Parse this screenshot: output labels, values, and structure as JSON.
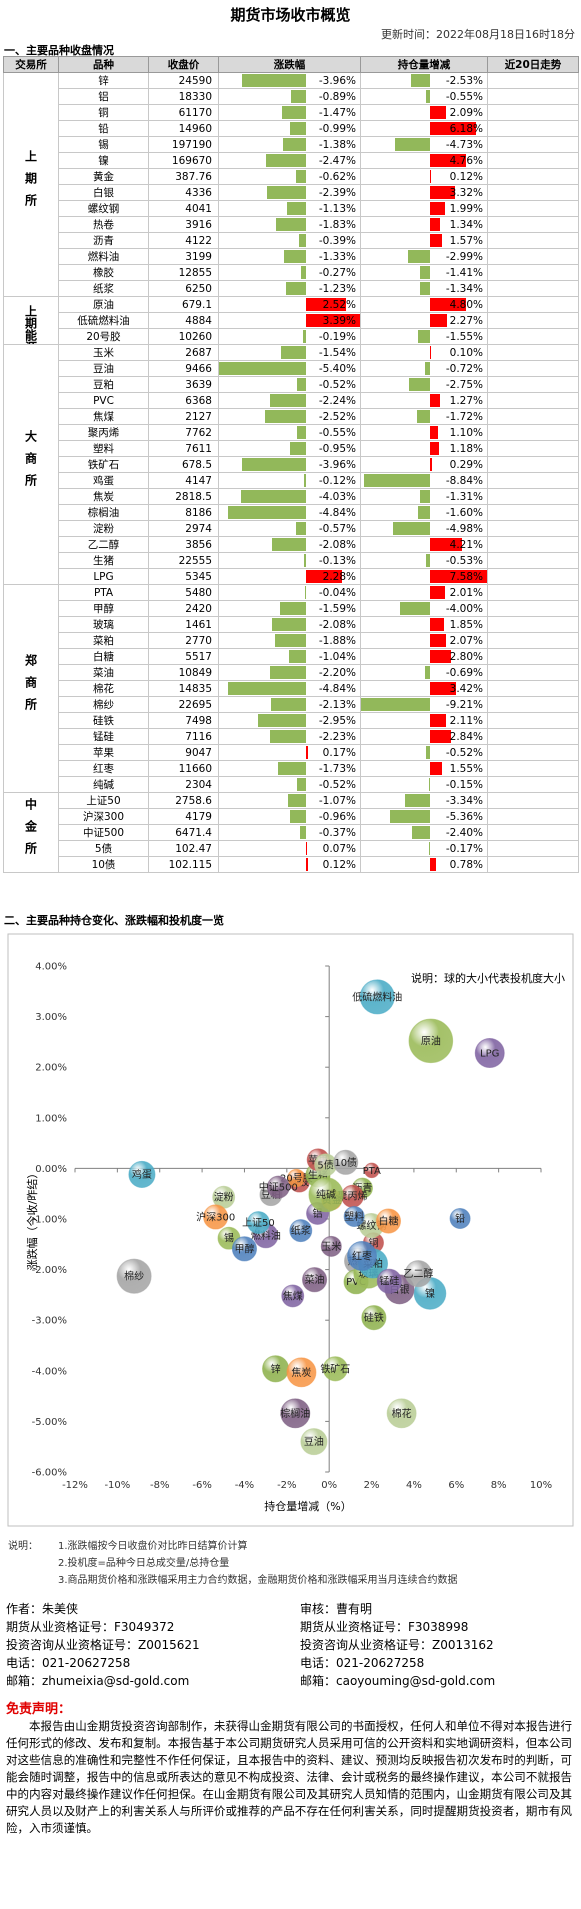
{
  "header": {
    "title": "期货市场收市概览",
    "updated": "更新时间：2022年08月18日16时18分"
  },
  "section1": "一、主要品种收盘情况",
  "table": {
    "columns": [
      "交易所",
      "品种",
      "收盘价",
      "涨跌幅",
      "持仓量增减",
      "近20日走势"
    ],
    "bar_colors": {
      "positive": "#ff0000",
      "negative": "#92b85a"
    },
    "groups": [
      {
        "exchange": "上期所",
        "rows": [
          {
            "name": "锌",
            "close": "24590",
            "change": -3.96,
            "change_label": "-3.96%",
            "oi": -2.53,
            "oi_label": "-2.53%"
          },
          {
            "name": "铝",
            "close": "18330",
            "change": -0.89,
            "change_label": "-0.89%",
            "oi": -0.55,
            "oi_label": "-0.55%"
          },
          {
            "name": "铜",
            "close": "61170",
            "change": -1.47,
            "change_label": "-1.47%",
            "oi": 2.09,
            "oi_label": "2.09%"
          },
          {
            "name": "铅",
            "close": "14960",
            "change": -0.99,
            "change_label": "-0.99%",
            "oi": 6.18,
            "oi_label": "6.18%"
          },
          {
            "name": "锡",
            "close": "197190",
            "change": -1.38,
            "change_label": "-1.38%",
            "oi": -4.73,
            "oi_label": "-4.73%"
          },
          {
            "name": "镍",
            "close": "169670",
            "change": -2.47,
            "change_label": "-2.47%",
            "oi": 4.76,
            "oi_label": "4.76%"
          },
          {
            "name": "黄金",
            "close": "387.76",
            "change": -0.62,
            "change_label": "-0.62%",
            "oi": 0.12,
            "oi_label": "0.12%"
          },
          {
            "name": "白银",
            "close": "4336",
            "change": -2.39,
            "change_label": "-2.39%",
            "oi": 3.32,
            "oi_label": "3.32%"
          },
          {
            "name": "螺纹钢",
            "close": "4041",
            "change": -1.13,
            "change_label": "-1.13%",
            "oi": 1.99,
            "oi_label": "1.99%"
          },
          {
            "name": "热卷",
            "close": "3916",
            "change": -1.83,
            "change_label": "-1.83%",
            "oi": 1.34,
            "oi_label": "1.34%"
          },
          {
            "name": "沥青",
            "close": "4122",
            "change": -0.39,
            "change_label": "-0.39%",
            "oi": 1.57,
            "oi_label": "1.57%"
          },
          {
            "name": "燃料油",
            "close": "3199",
            "change": -1.33,
            "change_label": "-1.33%",
            "oi": -2.99,
            "oi_label": "-2.99%"
          },
          {
            "name": "橡胶",
            "close": "12855",
            "change": -0.27,
            "change_label": "-0.27%",
            "oi": -1.41,
            "oi_label": "-1.41%"
          },
          {
            "name": "纸浆",
            "close": "6250",
            "change": -1.23,
            "change_label": "-1.23%",
            "oi": -1.34,
            "oi_label": "-1.34%"
          }
        ]
      },
      {
        "exchange": "上期能源",
        "rows": [
          {
            "name": "原油",
            "close": "679.1",
            "change": 2.52,
            "change_label": "2.52%",
            "oi": 4.8,
            "oi_label": "4.80%"
          },
          {
            "name": "低硫燃料油",
            "close": "4884",
            "change": 3.39,
            "change_label": "3.39%",
            "oi": 2.27,
            "oi_label": "2.27%"
          },
          {
            "name": "20号胶",
            "close": "10260",
            "change": -0.19,
            "change_label": "-0.19%",
            "oi": -1.55,
            "oi_label": "-1.55%"
          }
        ]
      },
      {
        "exchange": "大商所",
        "rows": [
          {
            "name": "玉米",
            "close": "2687",
            "change": -1.54,
            "change_label": "-1.54%",
            "oi": 0.1,
            "oi_label": "0.10%"
          },
          {
            "name": "豆油",
            "close": "9466",
            "change": -5.4,
            "change_label": "-5.40%",
            "oi": -0.72,
            "oi_label": "-0.72%"
          },
          {
            "name": "豆粕",
            "close": "3639",
            "change": -0.52,
            "change_label": "-0.52%",
            "oi": -2.75,
            "oi_label": "-2.75%"
          },
          {
            "name": "PVC",
            "close": "6368",
            "change": -2.24,
            "change_label": "-2.24%",
            "oi": 1.27,
            "oi_label": "1.27%"
          },
          {
            "name": "焦煤",
            "close": "2127",
            "change": -2.52,
            "change_label": "-2.52%",
            "oi": -1.72,
            "oi_label": "-1.72%"
          },
          {
            "name": "聚丙烯",
            "close": "7762",
            "change": -0.55,
            "change_label": "-0.55%",
            "oi": 1.1,
            "oi_label": "1.10%"
          },
          {
            "name": "塑料",
            "close": "7611",
            "change": -0.95,
            "change_label": "-0.95%",
            "oi": 1.18,
            "oi_label": "1.18%"
          },
          {
            "name": "铁矿石",
            "close": "678.5",
            "change": -3.96,
            "change_label": "-3.96%",
            "oi": 0.29,
            "oi_label": "0.29%"
          },
          {
            "name": "鸡蛋",
            "close": "4147",
            "change": -0.12,
            "change_label": "-0.12%",
            "oi": -8.84,
            "oi_label": "-8.84%"
          },
          {
            "name": "焦炭",
            "close": "2818.5",
            "change": -4.03,
            "change_label": "-4.03%",
            "oi": -1.31,
            "oi_label": "-1.31%"
          },
          {
            "name": "棕榈油",
            "close": "8186",
            "change": -4.84,
            "change_label": "-4.84%",
            "oi": -1.6,
            "oi_label": "-1.60%"
          },
          {
            "name": "淀粉",
            "close": "2974",
            "change": -0.57,
            "change_label": "-0.57%",
            "oi": -4.98,
            "oi_label": "-4.98%"
          },
          {
            "name": "乙二醇",
            "close": "3856",
            "change": -2.08,
            "change_label": "-2.08%",
            "oi": 4.21,
            "oi_label": "4.21%"
          },
          {
            "name": "生猪",
            "close": "22555",
            "change": -0.13,
            "change_label": "-0.13%",
            "oi": -0.53,
            "oi_label": "-0.53%"
          },
          {
            "name": "LPG",
            "close": "5345",
            "change": 2.28,
            "change_label": "2.28%",
            "oi": 7.58,
            "oi_label": "7.58%"
          }
        ]
      },
      {
        "exchange": "郑商所",
        "rows": [
          {
            "name": "PTA",
            "close": "5480",
            "change": -0.04,
            "change_label": "-0.04%",
            "oi": 2.01,
            "oi_label": "2.01%"
          },
          {
            "name": "甲醇",
            "close": "2420",
            "change": -1.59,
            "change_label": "-1.59%",
            "oi": -4.0,
            "oi_label": "-4.00%"
          },
          {
            "name": "玻璃",
            "close": "1461",
            "change": -2.08,
            "change_label": "-2.08%",
            "oi": 1.85,
            "oi_label": "1.85%"
          },
          {
            "name": "菜粕",
            "close": "2770",
            "change": -1.88,
            "change_label": "-1.88%",
            "oi": 2.07,
            "oi_label": "2.07%"
          },
          {
            "name": "白糖",
            "close": "5517",
            "change": -1.04,
            "change_label": "-1.04%",
            "oi": 2.8,
            "oi_label": "2.80%"
          },
          {
            "name": "菜油",
            "close": "10849",
            "change": -2.2,
            "change_label": "-2.20%",
            "oi": -0.69,
            "oi_label": "-0.69%"
          },
          {
            "name": "棉花",
            "close": "14835",
            "change": -4.84,
            "change_label": "-4.84%",
            "oi": 3.42,
            "oi_label": "3.42%"
          },
          {
            "name": "棉纱",
            "close": "22695",
            "change": -2.13,
            "change_label": "-2.13%",
            "oi": -9.21,
            "oi_label": "-9.21%"
          },
          {
            "name": "硅铁",
            "close": "7498",
            "change": -2.95,
            "change_label": "-2.95%",
            "oi": 2.11,
            "oi_label": "2.11%"
          },
          {
            "name": "锰硅",
            "close": "7116",
            "change": -2.23,
            "change_label": "-2.23%",
            "oi": 2.84,
            "oi_label": "2.84%"
          },
          {
            "name": "苹果",
            "close": "9047",
            "change": 0.17,
            "change_label": "0.17%",
            "oi": -0.52,
            "oi_label": "-0.52%"
          },
          {
            "name": "红枣",
            "close": "11660",
            "change": -1.73,
            "change_label": "-1.73%",
            "oi": 1.55,
            "oi_label": "1.55%"
          },
          {
            "name": "纯碱",
            "close": "2304",
            "change": -0.52,
            "change_label": "-0.52%",
            "oi": -0.15,
            "oi_label": "-0.15%"
          }
        ]
      },
      {
        "exchange": "中金所",
        "rows": [
          {
            "name": "上证50",
            "close": "2758.6",
            "change": -1.07,
            "change_label": "-1.07%",
            "oi": -3.34,
            "oi_label": "-3.34%"
          },
          {
            "name": "沪深300",
            "close": "4179",
            "change": -0.96,
            "change_label": "-0.96%",
            "oi": -5.36,
            "oi_label": "-5.36%"
          },
          {
            "name": "中证500",
            "close": "6471.4",
            "change": -0.37,
            "change_label": "-0.37%",
            "oi": -2.4,
            "oi_label": "-2.40%"
          },
          {
            "name": "5债",
            "close": "102.47",
            "change": 0.07,
            "change_label": "0.07%",
            "oi": -0.17,
            "oi_label": "-0.17%"
          },
          {
            "name": "10债",
            "close": "102.115",
            "change": 0.12,
            "change_label": "0.12%",
            "oi": 0.78,
            "oi_label": "0.78%"
          }
        ]
      }
    ]
  },
  "section2": "二、主要品种持仓变化、涨跌幅和投机度一览",
  "chart_data": {
    "type": "bubble",
    "note": "说明：球的大小代表投机度大小",
    "xlabel": "持仓量增减（%）",
    "ylabel": "涨跌幅（今收/昨结）",
    "xlim": [
      -12,
      10
    ],
    "ylim": [
      -6,
      4
    ],
    "xticks": [
      {
        "value": -12,
        "label": "-12%"
      },
      {
        "value": -10,
        "label": "-10%"
      },
      {
        "value": -8,
        "label": "-8%"
      },
      {
        "value": -6,
        "label": "-6%"
      },
      {
        "value": -4,
        "label": "-4%"
      },
      {
        "value": -2,
        "label": "-2%"
      },
      {
        "value": 0,
        "label": "0%"
      },
      {
        "value": 2,
        "label": "2%"
      },
      {
        "value": 4,
        "label": "4%"
      },
      {
        "value": 6,
        "label": "6%"
      },
      {
        "value": 8,
        "label": "8%"
      },
      {
        "value": 10,
        "label": "10%"
      }
    ],
    "yticks": [
      {
        "value": 4,
        "label": "4.00%"
      },
      {
        "value": 3,
        "label": "3.00%"
      },
      {
        "value": 2,
        "label": "2.00%"
      },
      {
        "value": 1,
        "label": "1.00%"
      },
      {
        "value": 0,
        "label": "0.00%"
      },
      {
        "value": -1,
        "label": "-1.00%"
      },
      {
        "value": -2,
        "label": "-2.00%"
      },
      {
        "value": -3,
        "label": "-3.00%"
      },
      {
        "value": -4,
        "label": "-4.00%"
      },
      {
        "value": -5,
        "label": "-5.00%"
      },
      {
        "value": -6,
        "label": "-6.00%"
      }
    ],
    "palette": [
      "#8fb24f",
      "#8064a2",
      "#c0504d",
      "#4f81bd",
      "#9bbb59",
      "#4bacc6",
      "#f79646",
      "#7f6084",
      "#b9cd96",
      "#a5a5a5"
    ],
    "sizes": [
      [
        6.8,
        4.8,
        4,
        4,
        4.8,
        10,
        4,
        8.4,
        5.8,
        6.8,
        4,
        5.8,
        4,
        4.8
      ],
      [
        19,
        11.6,
        3
      ],
      [
        4,
        6.8,
        4.8,
        5.8,
        4.8,
        4.8,
        4,
        5.8,
        6.8,
        8.4,
        8.4,
        4.8,
        6.8,
        5.8,
        8.4
      ],
      [
        2.1,
        5.8,
        8.4,
        8.4,
        5.8,
        5.8,
        8.4,
        11.6,
        5.8,
        5.8,
        4.8,
        8.4,
        11.6
      ],
      [
        4.8,
        5.8,
        4.8,
        4.8,
        5.8
      ]
    ]
  },
  "notes": {
    "label": "说明：",
    "items": [
      "1.涨跌幅按今日收盘价对比昨日结算价计算",
      "2.投机度=品种今日总成交量/总持仓量",
      "3.商品期货价格和涨跌幅采用主力合约数据，金融期货价格和涨跌幅采用当月连续合约数据"
    ]
  },
  "authors": [
    [
      "作者：朱美侠",
      "期货从业资格证号：F3049372",
      "投资咨询从业资格证号：Z0015621",
      "电话：021-20627258",
      "邮箱：zhumeixia@sd-gold.com"
    ],
    [
      "审核：曹有明",
      "期货从业资格证号：F3038998",
      "投资咨询从业资格证号：Z0013162",
      "电话：021-20627258",
      "邮箱：caoyouming@sd-gold.com"
    ]
  ],
  "disclaimer": {
    "title": "免责声明：",
    "text": "本报告由山金期货投资咨询部制作，未获得山金期货有限公司的书面授权，任何人和单位不得对本报告进行任何形式的修改、发布和复制。本报告基于本公司期货研究人员采用可信的公开资料和实地调研资料，但本公司对这些信息的准确性和完整性不作任何保证，且本报告中的资料、建议、预测均反映报告初次发布时的判断，可能会随时调整，报告中的信息或所表达的意见不构成投资、法律、会计或税务的最终操作建议，本公司不就报告中的内容对最终操作建议作任何担保。在山金期货有限公司及其研究人员知情的范围内，山金期货有限公司及其研究人员以及财产上的利害关系人与所评价或推荐的产品不存在任何利害关系，同时提醒期货投资者，期市有风险，入市须谨慎。"
  }
}
